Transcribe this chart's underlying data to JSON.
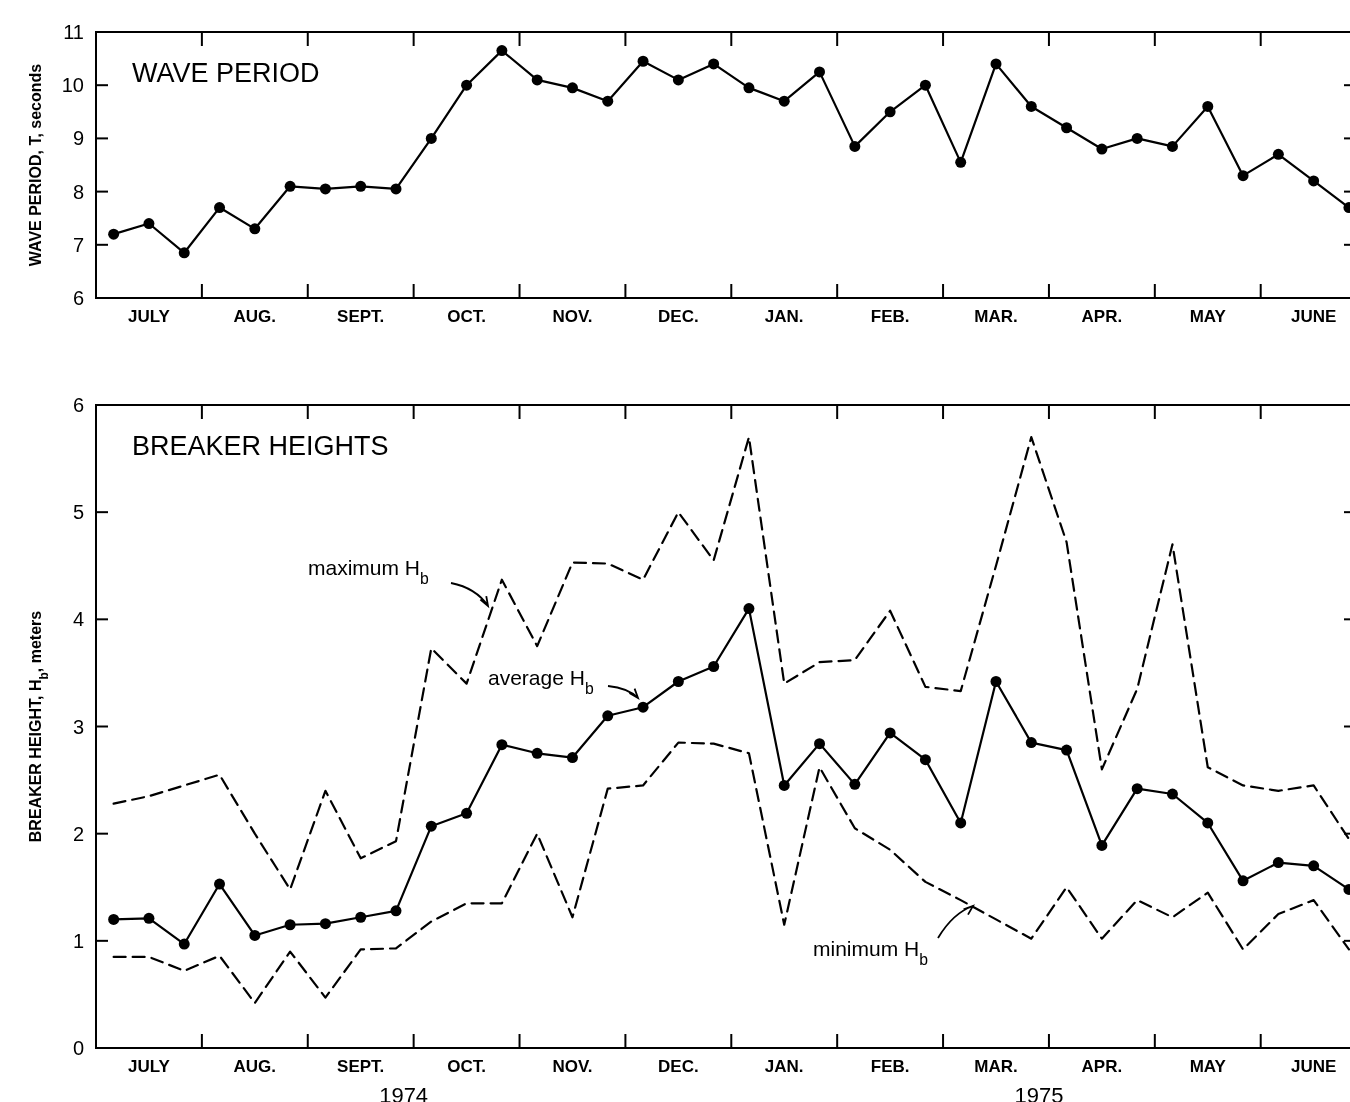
{
  "chart_data": [
    {
      "type": "line",
      "title": "WAVE PERIOD",
      "ylabel": "WAVE PERIOD, T, seconds",
      "categories": [
        null,
        "JULY",
        null,
        null,
        "AUG.",
        null,
        null,
        "SEPT.",
        null,
        null,
        "OCT.",
        null,
        null,
        "NOV.",
        null,
        null,
        "DEC.",
        null,
        null,
        "JAN.",
        null,
        null,
        "FEB.",
        null,
        null,
        "MAR.",
        null,
        null,
        "APR.",
        null,
        null,
        "MAY",
        null,
        null,
        "JUNE",
        null
      ],
      "series": [
        {
          "color": "#000000",
          "marker": "circle",
          "line_style": "solid",
          "values": [
            7.2,
            7.4,
            6.85,
            7.7,
            7.3,
            8.1,
            8.05,
            8.1,
            8.05,
            9.0,
            10.0,
            10.65,
            10.1,
            9.95,
            9.7,
            10.45,
            10.1,
            10.4,
            9.95,
            9.7,
            10.25,
            8.85,
            9.5,
            10.0,
            8.55,
            10.4,
            9.6,
            9.2,
            8.8,
            9.0,
            8.85,
            9.6,
            8.3,
            8.7,
            8.2,
            7.7
          ]
        }
      ],
      "ylim": [
        6,
        11
      ],
      "yticks": [
        6,
        7,
        8,
        9,
        10,
        11
      ],
      "grid": false
    },
    {
      "type": "line",
      "title": "BREAKER HEIGHTS",
      "ylabel": "BREAKER HEIGHT, H$_{b}$, meters",
      "annotations": [
        "1974",
        "1975"
      ],
      "categories": [
        null,
        "JULY",
        null,
        null,
        "AUG.",
        null,
        null,
        "SEPT.",
        null,
        null,
        "OCT.",
        null,
        null,
        "NOV.",
        null,
        null,
        "DEC.",
        null,
        null,
        "JAN.",
        null,
        null,
        "FEB.",
        null,
        null,
        "MAR.",
        null,
        null,
        "APR.",
        null,
        null,
        "MAY",
        null,
        null,
        "JUNE",
        null
      ],
      "series": [
        {
          "name": "maximum H$_{b}$",
          "color": "#000000",
          "marker": "none",
          "line_style": "dashed",
          "values": [
            2.28,
            2.35,
            2.45,
            2.55,
            2.0,
            1.48,
            2.4,
            1.77,
            1.93,
            3.73,
            3.4,
            4.37,
            3.75,
            4.53,
            4.52,
            4.37,
            5.0,
            4.55,
            5.7,
            3.4,
            3.6,
            3.62,
            4.08,
            3.37,
            3.33,
            4.5,
            5.7,
            4.72,
            2.6,
            3.35,
            4.7,
            2.62,
            2.45,
            2.4,
            2.45,
            1.95
          ]
        },
        {
          "name": "average H$_{b}$",
          "color": "#000000",
          "marker": "circle",
          "line_style": "solid",
          "values": [
            1.2,
            1.21,
            0.97,
            1.53,
            1.05,
            1.15,
            1.16,
            1.22,
            1.28,
            2.07,
            2.19,
            2.83,
            2.75,
            2.71,
            3.1,
            3.18,
            3.42,
            3.56,
            4.1,
            2.45,
            2.84,
            2.46,
            2.94,
            2.69,
            2.1,
            3.42,
            2.85,
            2.78,
            1.89,
            2.42,
            2.37,
            2.1,
            1.56,
            1.73,
            1.7,
            1.48
          ]
        },
        {
          "name": "minimum H$_{b}$",
          "color": "#000000",
          "marker": "none",
          "line_style": "dashed",
          "values": [
            0.85,
            0.85,
            0.72,
            0.86,
            0.42,
            0.9,
            0.47,
            0.92,
            0.93,
            1.18,
            1.35,
            1.35,
            2.0,
            1.22,
            2.42,
            2.45,
            2.85,
            2.84,
            2.75,
            1.15,
            2.62,
            2.05,
            1.85,
            1.55,
            1.38,
            1.2,
            1.02,
            1.5,
            1.02,
            1.38,
            1.22,
            1.45,
            0.92,
            1.25,
            1.38,
            0.92
          ]
        }
      ],
      "ylim": [
        0,
        6
      ],
      "yticks": [
        0,
        1,
        2,
        3,
        4,
        5,
        6
      ],
      "grid": false
    }
  ]
}
